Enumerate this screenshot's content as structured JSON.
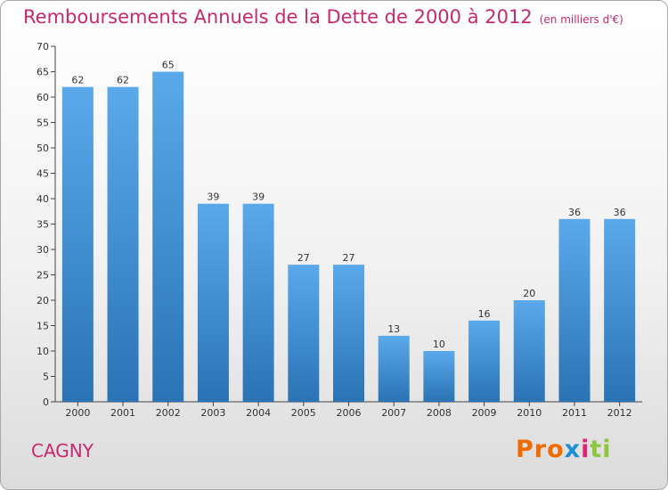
{
  "header": {
    "title": "Remboursements Annuels de la Dette de 2000 à 2012",
    "unit": "(en milliers d'€)"
  },
  "footer": {
    "place": "CAGNY",
    "logo": [
      "Pro",
      "x",
      "i",
      "ti"
    ]
  },
  "colors": {
    "bar_light": "#5aa9ea",
    "bar_dark": "#2a73b5",
    "title": "#c8286f"
  },
  "chart_data": {
    "type": "bar",
    "title": "Remboursements Annuels de la Dette de 2000 à 2012",
    "xlabel": "",
    "ylabel": "",
    "categories": [
      "2000",
      "2001",
      "2002",
      "2003",
      "2004",
      "2005",
      "2006",
      "2007",
      "2008",
      "2009",
      "2010",
      "2011",
      "2012"
    ],
    "values": [
      62,
      62,
      65,
      39,
      39,
      27,
      27,
      13,
      10,
      16,
      20,
      36,
      36
    ],
    "ylim": [
      0,
      70
    ],
    "yticks": [
      0,
      5,
      10,
      15,
      20,
      25,
      30,
      35,
      40,
      45,
      50,
      55,
      60,
      65,
      70
    ],
    "grid": false,
    "data_labels": true
  }
}
